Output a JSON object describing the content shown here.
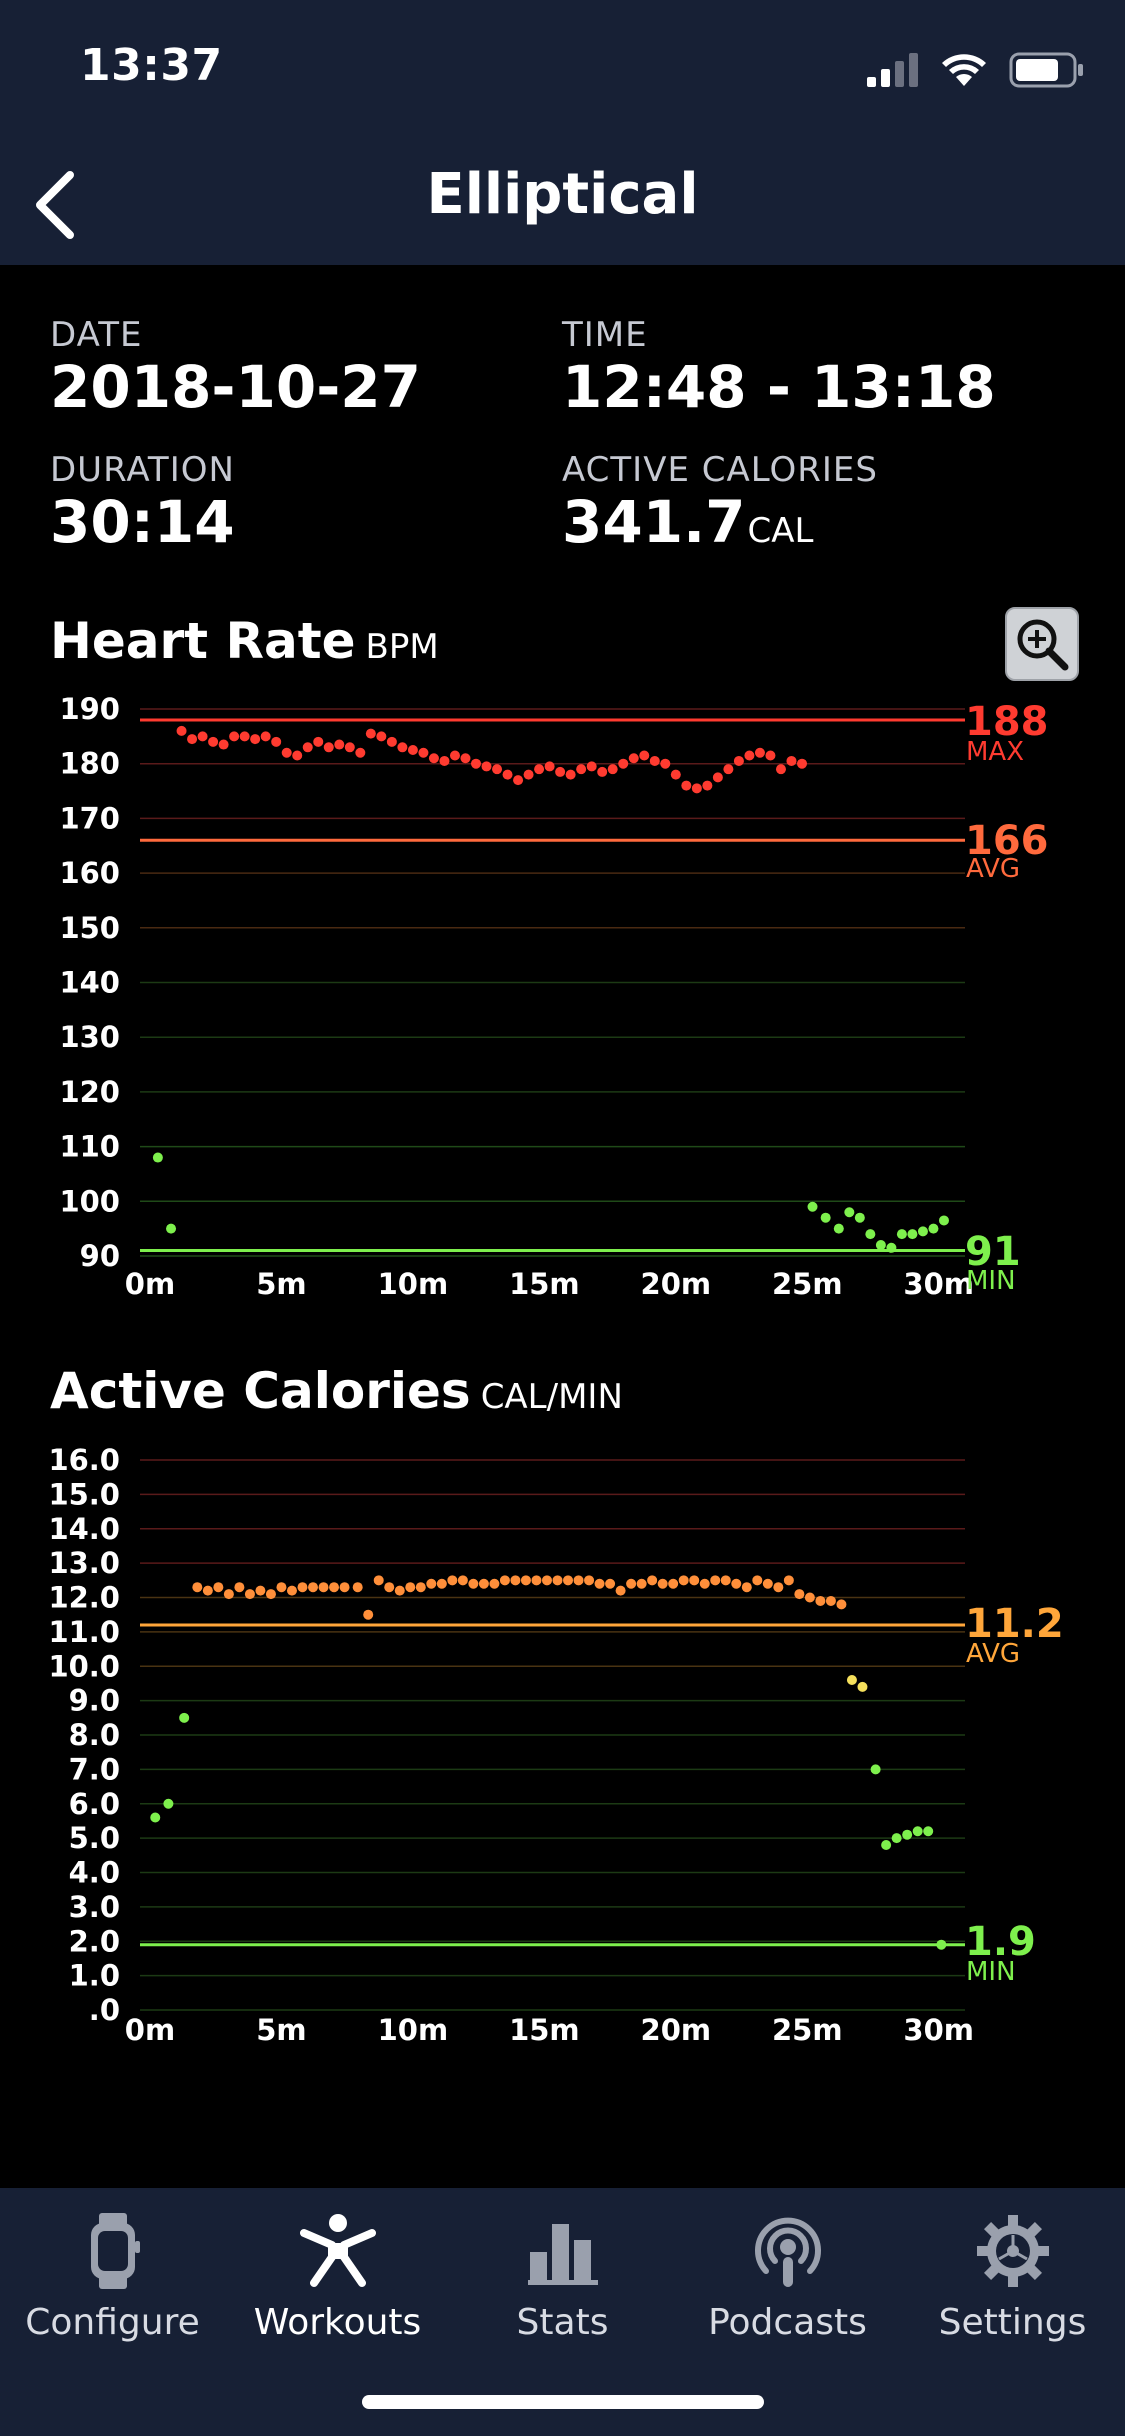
{
  "status": {
    "time": "13:37"
  },
  "header": {
    "title": "Elliptical",
    "back_icon": "chevron-left-icon"
  },
  "info": {
    "date_label": "DATE",
    "date_value": "2018-10-27",
    "time_label": "TIME",
    "time_value": "12:48 - 13:18",
    "duration_label": "DURATION",
    "duration_value": "30:14",
    "calories_label": "ACTIVE CALORIES",
    "calories_value": "341.7",
    "calories_unit": "CAL"
  },
  "heart_rate": {
    "title": "Heart Rate",
    "unit": "BPM",
    "zoom_icon": "zoom-in-icon",
    "max_value": "188",
    "max_label": "MAX",
    "avg_value": "166",
    "avg_label": "AVG",
    "min_value": "91",
    "min_label": "MIN"
  },
  "calories_chart": {
    "title": "Active Calories",
    "unit": "CAL/MIN",
    "avg_value": "11.2",
    "avg_label": "AVG",
    "min_value": "1.9",
    "min_label": "MIN"
  },
  "colors": {
    "red": "#ff3b30",
    "orange": "#ff8f3a",
    "yellow": "#f5e05c",
    "green": "#7ef04d",
    "nav_bg": "#172035"
  },
  "chart_data": [
    {
      "type": "scatter",
      "title": "Heart Rate",
      "ylabel": "BPM",
      "x_ticks": [
        "0m",
        "5m",
        "10m",
        "15m",
        "20m",
        "25m",
        "30m"
      ],
      "y_ticks": [
        "190",
        "180",
        "170",
        "160",
        "150",
        "140",
        "130",
        "120",
        "110",
        "100",
        "90"
      ],
      "xlim": [
        0,
        31
      ],
      "ylim": [
        90,
        190
      ],
      "reference_lines": [
        {
          "label": "MAX",
          "value": 188
        },
        {
          "label": "AVG",
          "value": 166
        },
        {
          "label": "MIN",
          "value": 91
        }
      ],
      "series": [
        {
          "values": [
            [
              0.3,
              108
            ],
            [
              0.8,
              95
            ],
            [
              1.2,
              186
            ],
            [
              1.6,
              184.5
            ],
            [
              2.0,
              185
            ],
            [
              2.4,
              184
            ],
            [
              2.8,
              183.5
            ],
            [
              3.2,
              185
            ],
            [
              3.6,
              185
            ],
            [
              4.0,
              184.5
            ],
            [
              4.4,
              185
            ],
            [
              4.8,
              184
            ],
            [
              5.2,
              182
            ],
            [
              5.6,
              181.5
            ],
            [
              6.0,
              183
            ],
            [
              6.4,
              184
            ],
            [
              6.8,
              183
            ],
            [
              7.2,
              183.5
            ],
            [
              7.6,
              183
            ],
            [
              8.0,
              182
            ],
            [
              8.4,
              185.5
            ],
            [
              8.8,
              185
            ],
            [
              9.2,
              184
            ],
            [
              9.6,
              183
            ],
            [
              10.0,
              182.5
            ],
            [
              10.4,
              182
            ],
            [
              10.8,
              181
            ],
            [
              11.2,
              180.5
            ],
            [
              11.6,
              181.5
            ],
            [
              12.0,
              181
            ],
            [
              12.4,
              180
            ],
            [
              12.8,
              179.5
            ],
            [
              13.2,
              179
            ],
            [
              13.6,
              178
            ],
            [
              14.0,
              177
            ],
            [
              14.4,
              178
            ],
            [
              14.8,
              179
            ],
            [
              15.2,
              179.5
            ],
            [
              15.6,
              178.5
            ],
            [
              16.0,
              178
            ],
            [
              16.4,
              179
            ],
            [
              16.8,
              179.5
            ],
            [
              17.2,
              178.5
            ],
            [
              17.6,
              179
            ],
            [
              18.0,
              180
            ],
            [
              18.4,
              181
            ],
            [
              18.8,
              181.5
            ],
            [
              19.2,
              180.5
            ],
            [
              19.6,
              180
            ],
            [
              20.0,
              178
            ],
            [
              20.4,
              176
            ],
            [
              20.8,
              175.5
            ],
            [
              21.2,
              176
            ],
            [
              21.6,
              177.5
            ],
            [
              22.0,
              179
            ],
            [
              22.4,
              180.5
            ],
            [
              22.8,
              181.5
            ],
            [
              23.2,
              182
            ],
            [
              23.6,
              181.5
            ],
            [
              24.0,
              179
            ],
            [
              24.4,
              180.5
            ],
            [
              24.8,
              180
            ],
            [
              25.2,
              99
            ],
            [
              25.7,
              97
            ],
            [
              26.2,
              95
            ],
            [
              26.6,
              98
            ],
            [
              27.0,
              97
            ],
            [
              27.4,
              94
            ],
            [
              27.8,
              92
            ],
            [
              28.2,
              91.5
            ],
            [
              28.6,
              94
            ],
            [
              29.0,
              94
            ],
            [
              29.4,
              94.5
            ],
            [
              29.8,
              95
            ],
            [
              30.2,
              96.5
            ]
          ]
        }
      ]
    },
    {
      "type": "scatter",
      "title": "Active Calories",
      "ylabel": "CAL/MIN",
      "x_ticks": [
        "0m",
        "5m",
        "10m",
        "15m",
        "20m",
        "25m",
        "30m"
      ],
      "y_ticks": [
        "16.0",
        "15.0",
        "14.0",
        "13.0",
        "12.0",
        "11.0",
        "10.0",
        "9.0",
        "8.0",
        "7.0",
        "6.0",
        "5.0",
        "4.0",
        "3.0",
        "2.0",
        "1.0",
        ".0"
      ],
      "xlim": [
        0,
        31
      ],
      "ylim": [
        0,
        16
      ],
      "reference_lines": [
        {
          "label": "AVG",
          "value": 11.2
        },
        {
          "label": "MIN",
          "value": 1.9
        }
      ],
      "series": [
        {
          "values": [
            [
              0.2,
              5.6
            ],
            [
              0.7,
              6.0
            ],
            [
              1.3,
              8.5
            ],
            [
              1.8,
              12.3
            ],
            [
              2.2,
              12.2
            ],
            [
              2.6,
              12.3
            ],
            [
              3.0,
              12.1
            ],
            [
              3.4,
              12.3
            ],
            [
              3.8,
              12.1
            ],
            [
              4.2,
              12.2
            ],
            [
              4.6,
              12.1
            ],
            [
              5.0,
              12.3
            ],
            [
              5.4,
              12.2
            ],
            [
              5.8,
              12.3
            ],
            [
              6.2,
              12.3
            ],
            [
              6.6,
              12.3
            ],
            [
              7.0,
              12.3
            ],
            [
              7.4,
              12.3
            ],
            [
              7.9,
              12.3
            ],
            [
              8.3,
              11.5
            ],
            [
              8.7,
              12.5
            ],
            [
              9.1,
              12.3
            ],
            [
              9.5,
              12.2
            ],
            [
              9.9,
              12.3
            ],
            [
              10.3,
              12.3
            ],
            [
              10.7,
              12.4
            ],
            [
              11.1,
              12.4
            ],
            [
              11.5,
              12.5
            ],
            [
              11.9,
              12.5
            ],
            [
              12.3,
              12.4
            ],
            [
              12.7,
              12.4
            ],
            [
              13.1,
              12.4
            ],
            [
              13.5,
              12.5
            ],
            [
              13.9,
              12.5
            ],
            [
              14.3,
              12.5
            ],
            [
              14.7,
              12.5
            ],
            [
              15.1,
              12.5
            ],
            [
              15.5,
              12.5
            ],
            [
              15.9,
              12.5
            ],
            [
              16.3,
              12.5
            ],
            [
              16.7,
              12.5
            ],
            [
              17.1,
              12.4
            ],
            [
              17.5,
              12.4
            ],
            [
              17.9,
              12.2
            ],
            [
              18.3,
              12.4
            ],
            [
              18.7,
              12.4
            ],
            [
              19.1,
              12.5
            ],
            [
              19.5,
              12.4
            ],
            [
              19.9,
              12.4
            ],
            [
              20.3,
              12.5
            ],
            [
              20.7,
              12.5
            ],
            [
              21.1,
              12.4
            ],
            [
              21.5,
              12.5
            ],
            [
              21.9,
              12.5
            ],
            [
              22.3,
              12.4
            ],
            [
              22.7,
              12.3
            ],
            [
              23.1,
              12.5
            ],
            [
              23.5,
              12.4
            ],
            [
              23.9,
              12.3
            ],
            [
              24.3,
              12.5
            ],
            [
              24.7,
              12.1
            ],
            [
              25.1,
              12.0
            ],
            [
              25.5,
              11.9
            ],
            [
              25.9,
              11.9
            ],
            [
              26.3,
              11.8
            ],
            [
              26.7,
              9.6
            ],
            [
              27.1,
              9.4
            ],
            [
              27.6,
              7.0
            ],
            [
              28.0,
              4.8
            ],
            [
              28.4,
              5.0
            ],
            [
              28.8,
              5.1
            ],
            [
              29.2,
              5.2
            ],
            [
              29.6,
              5.2
            ],
            [
              30.1,
              1.9
            ]
          ]
        }
      ]
    }
  ],
  "tabs": [
    {
      "label": "Configure",
      "icon": "watch-icon"
    },
    {
      "label": "Workouts",
      "icon": "running-figure-icon"
    },
    {
      "label": "Stats",
      "icon": "bar-chart-icon"
    },
    {
      "label": "Podcasts",
      "icon": "podcast-icon"
    },
    {
      "label": "Settings",
      "icon": "gear-icon"
    }
  ]
}
